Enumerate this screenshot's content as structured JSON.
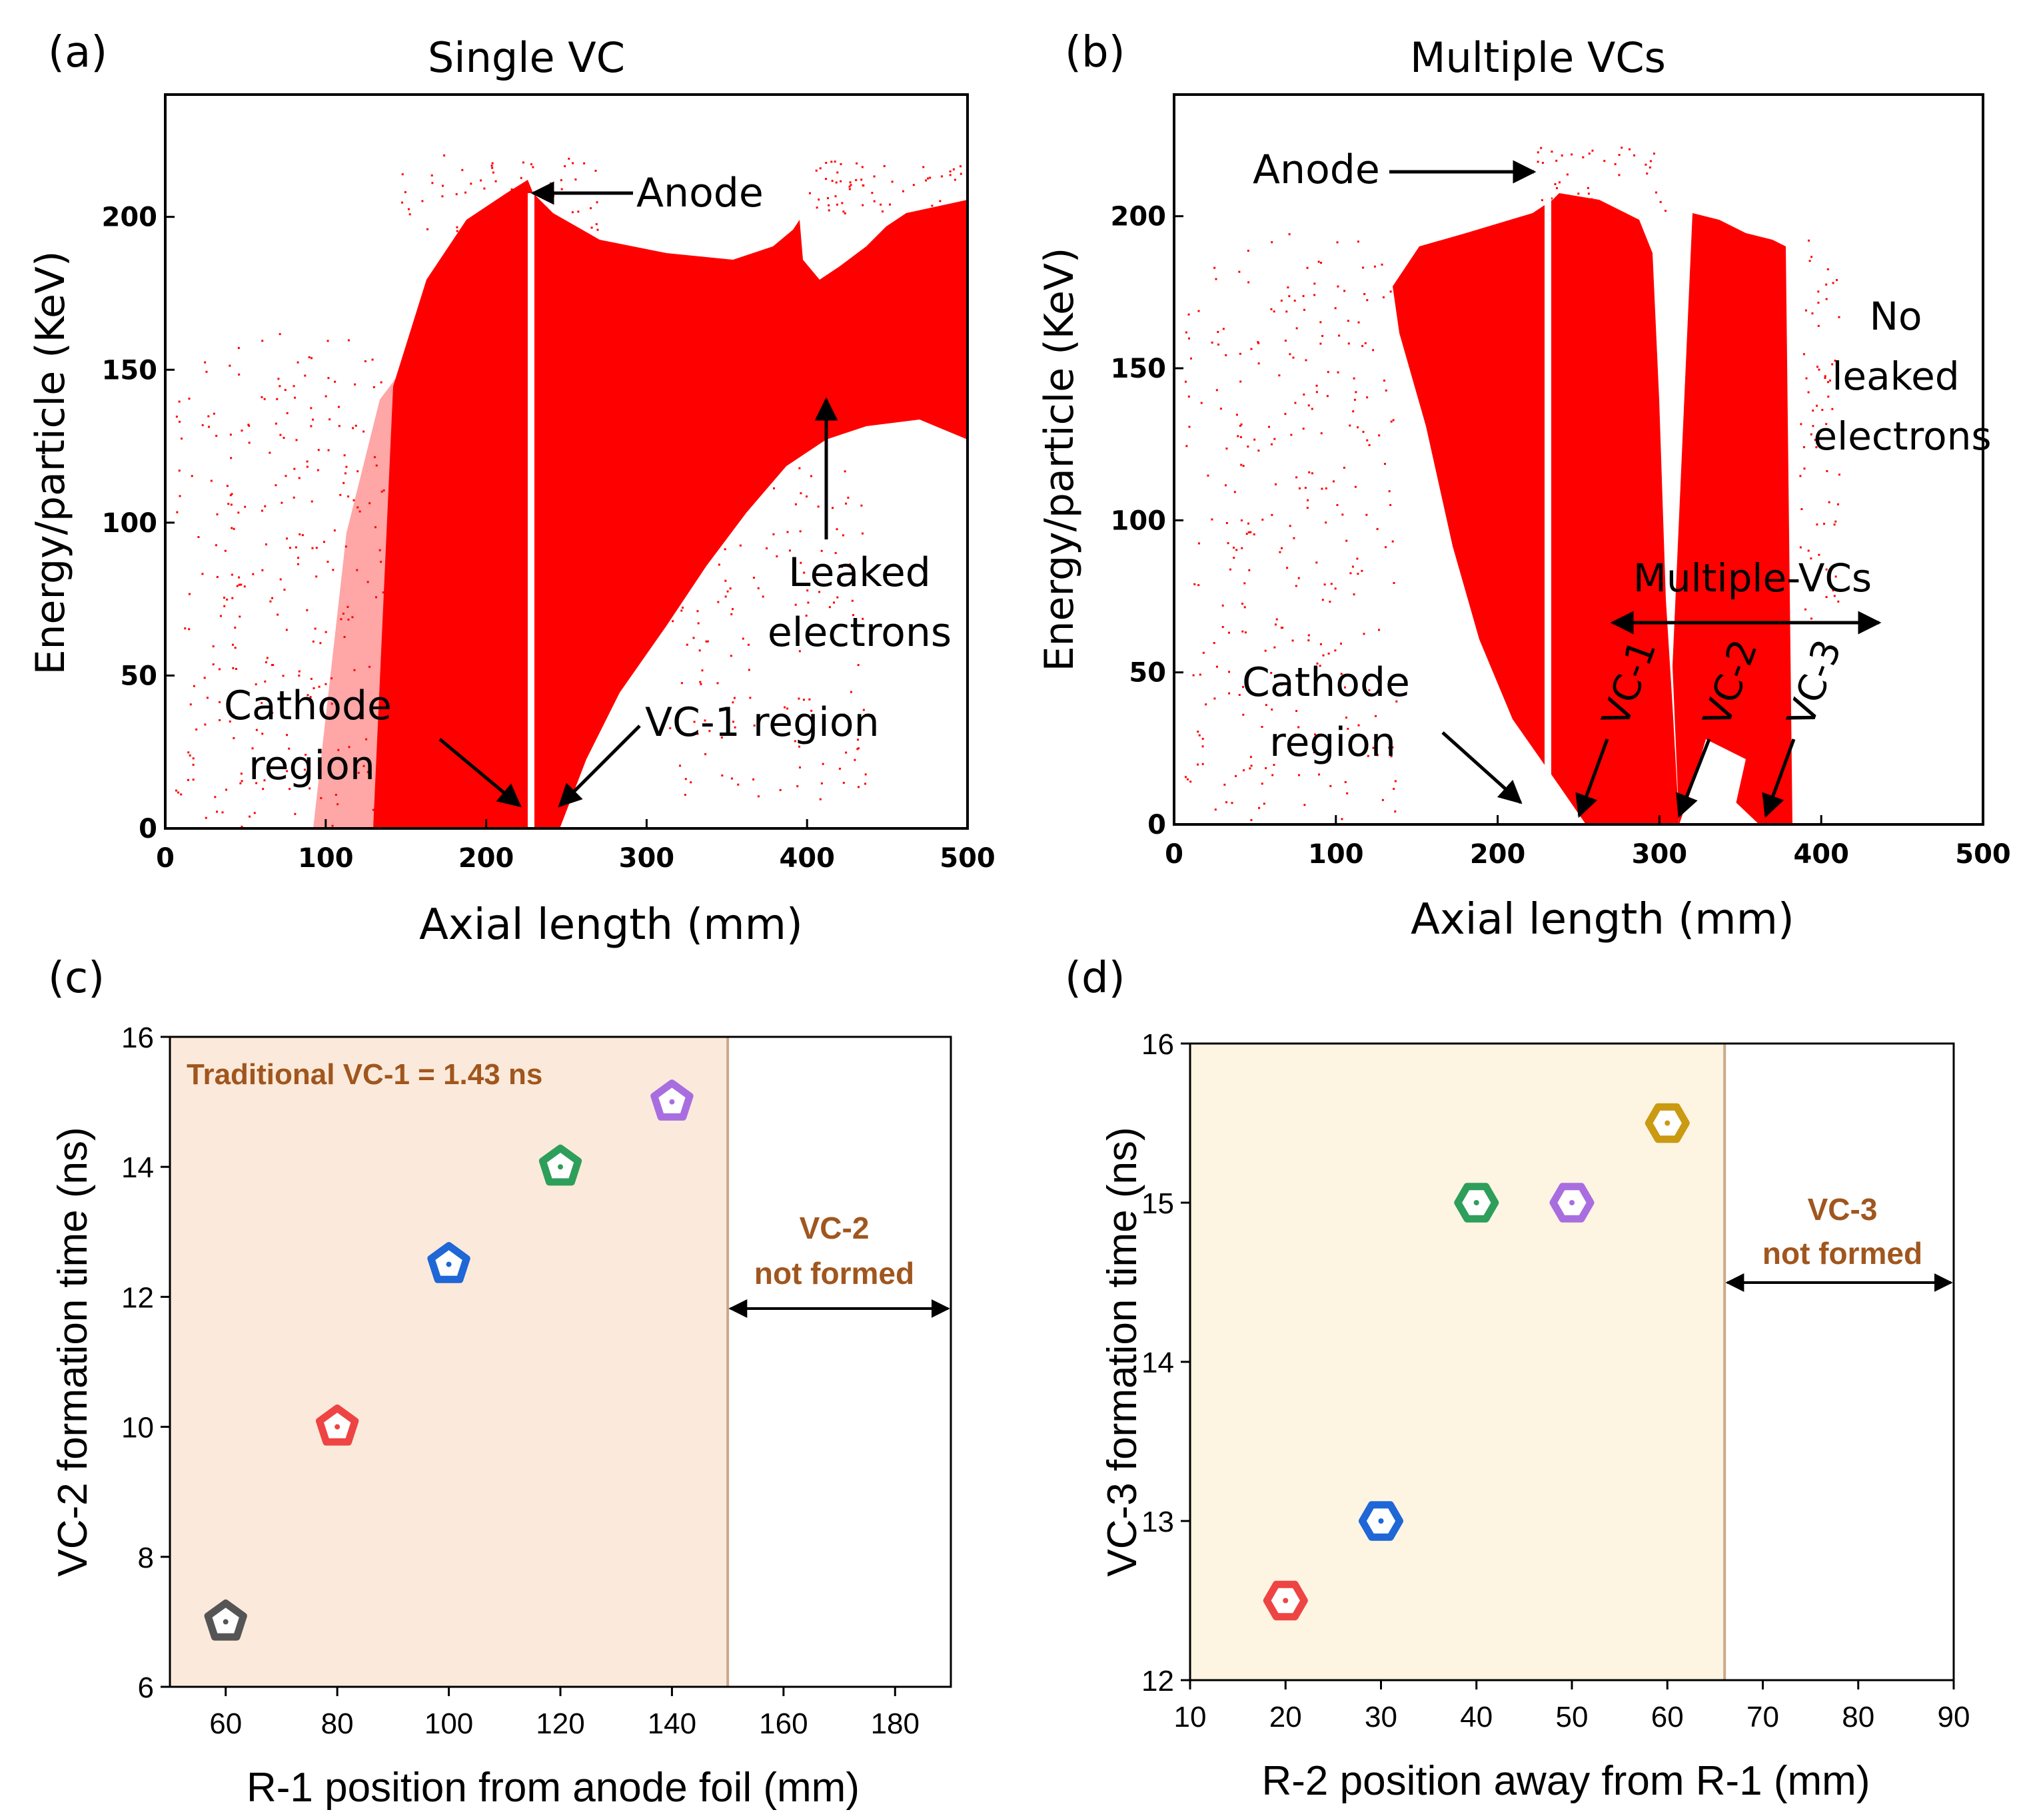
{
  "colors": {
    "scatter": "#ff0000",
    "shade_c": "#fbeadb",
    "shade_d": "#fdf4e2",
    "boundary": "#c9a98a",
    "annotation": "#a0561e",
    "frame": "#000000"
  },
  "chart_data": [
    {
      "id": "a",
      "panel_label": "(a)",
      "type": "scatter",
      "title": "Single VC",
      "xlabel": "Axial length (mm)",
      "ylabel": "Energy/particle (KeV)",
      "xlim": [
        0,
        500
      ],
      "ylim": [
        0,
        240
      ],
      "xticks": [
        "0",
        "100",
        "200",
        "300",
        "400",
        "500"
      ],
      "yticks": [
        "0",
        "50",
        "100",
        "150",
        "200"
      ],
      "anode_x": 220,
      "annotations": {
        "anode": "Anode",
        "leaked_1": "Leaked",
        "leaked_2": "electrons",
        "cathode_1": "Cathode",
        "cathode_2": "region",
        "vc1": "VC-1 region"
      }
    },
    {
      "id": "b",
      "panel_label": "(b)",
      "type": "scatter",
      "title": "Multiple VCs",
      "xlabel": "Axial length (mm)",
      "ylabel": "Energy/particle (KeV)",
      "xlim": [
        0,
        500
      ],
      "ylim": [
        0,
        240
      ],
      "xticks": [
        "0",
        "100",
        "200",
        "300",
        "400",
        "500"
      ],
      "yticks": [
        "0",
        "50",
        "100",
        "150",
        "200"
      ],
      "anode_x": 220,
      "annotations": {
        "anode": "Anode",
        "no_1": "No",
        "no_2": "leaked",
        "no_3": "electrons",
        "multiple": "Multiple-VCs",
        "cathode_1": "Cathode",
        "cathode_2": "region",
        "vc1": "VC-1",
        "vc2": "VC-2",
        "vc3": "VC-3"
      }
    },
    {
      "id": "c",
      "panel_label": "(c)",
      "type": "scatter",
      "xlabel": "R-1 position from anode foil (mm)",
      "ylabel": "VC-2 formation time (ns)",
      "xlim": [
        50,
        190
      ],
      "ylim": [
        6,
        16
      ],
      "xticks": [
        60,
        80,
        100,
        120,
        140,
        160,
        180
      ],
      "yticks": [
        6,
        8,
        10,
        12,
        14,
        16
      ],
      "shaded_until_x": 150,
      "note": "Traditional VC-1 = 1.43 ns",
      "region_label_1": "VC-2",
      "region_label_2": "not formed",
      "marker": "pentagon",
      "points": [
        {
          "x": 60,
          "y": 7,
          "color": "#555555"
        },
        {
          "x": 80,
          "y": 10,
          "color": "#ee4444"
        },
        {
          "x": 100,
          "y": 12.5,
          "color": "#1f66d6"
        },
        {
          "x": 120,
          "y": 14,
          "color": "#2e9e5b"
        },
        {
          "x": 140,
          "y": 15,
          "color": "#a86ee0"
        }
      ]
    },
    {
      "id": "d",
      "panel_label": "(d)",
      "type": "scatter",
      "xlabel": "R-2 position away from R-1 (mm)",
      "ylabel": "VC-3 formation time (ns)",
      "xlim": [
        10,
        90
      ],
      "ylim": [
        12,
        16
      ],
      "xticks": [
        10,
        20,
        30,
        40,
        50,
        60,
        70,
        80,
        90
      ],
      "yticks": [
        12,
        13,
        14,
        15,
        16
      ],
      "shaded_until_x": 66,
      "region_label_1": "VC-3",
      "region_label_2": "not formed",
      "marker": "hexagon",
      "points": [
        {
          "x": 20,
          "y": 12.5,
          "color": "#ee4444"
        },
        {
          "x": 30,
          "y": 13,
          "color": "#1f66d6"
        },
        {
          "x": 40,
          "y": 15,
          "color": "#2e9e5b"
        },
        {
          "x": 50,
          "y": 15,
          "color": "#a86ee0"
        },
        {
          "x": 60,
          "y": 15.5,
          "color": "#c99a12"
        }
      ]
    }
  ]
}
